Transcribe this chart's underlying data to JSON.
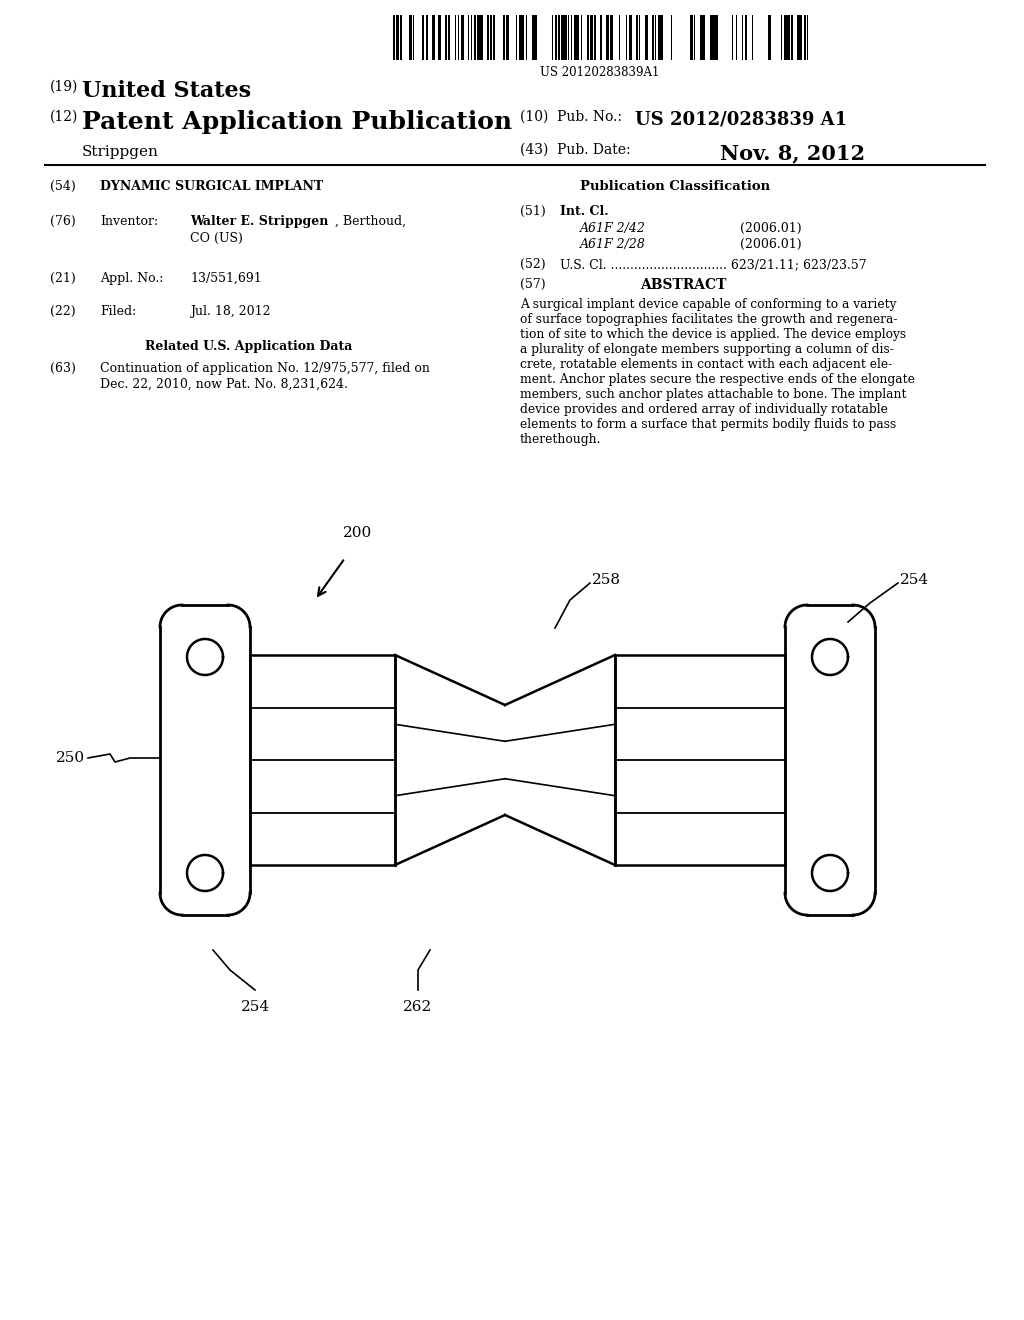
{
  "bg_color": "#ffffff",
  "barcode_text": "US 20120283839A1",
  "title_19": "(19) United States",
  "title_12": "(12) Patent Application Publication",
  "pub_no_label": "(10) Pub. No.:",
  "pub_no_value": "US 2012/0283839 A1",
  "inventor_name": "Strippgen",
  "pub_date_label": "(43) Pub. Date:",
  "pub_date_value": "Nov. 8, 2012",
  "field_54": "(54)   DYNAMIC SURGICAL IMPLANT",
  "field_76_label": "(76)   Inventor:",
  "field_76_bold": "Walter E. Strippgen",
  "field_76_rest": ", Berthoud,",
  "field_76_line2": "CO (US)",
  "field_21_label": "(21)   Appl. No.:",
  "field_21_value": "13/551,691",
  "field_22_label": "(22)   Filed:",
  "field_22_value": "Jul. 18, 2012",
  "related_title": "Related U.S. Application Data",
  "field_63_line1": "(63)   Continuation of application No. 12/975,577, filed on",
  "field_63_line2": "         Dec. 22, 2010, now Pat. No. 8,231,624.",
  "pub_class_title": "Publication Classification",
  "field_51": "(51)   Int. Cl.",
  "class_a61f_242": "A61F 2/42",
  "class_a61f_242_date": "(2006.01)",
  "class_a61f_228": "A61F 2/28",
  "class_a61f_228_date": "(2006.01)",
  "field_52": "(52)   U.S. Cl. ................................... 623/21.11; 623/23.57",
  "field_57_label": "(57)                         ABSTRACT",
  "abstract_text": "A surgical implant device capable of conforming to a variety\nof surface topographies facilitates the growth and regenera-\ntion of site to which the device is applied. The device employs\na plurality of elongate members supporting a column of dis-\ncrete, rotatable elements in contact with each adjacent ele-\nment. Anchor plates secure the respective ends of the elongate\nmembers, such anchor plates attachable to bone. The implant\ndevice provides and ordered array of individually rotatable\nelements to form a surface that permits bodily fluids to pass\ntherethough."
}
